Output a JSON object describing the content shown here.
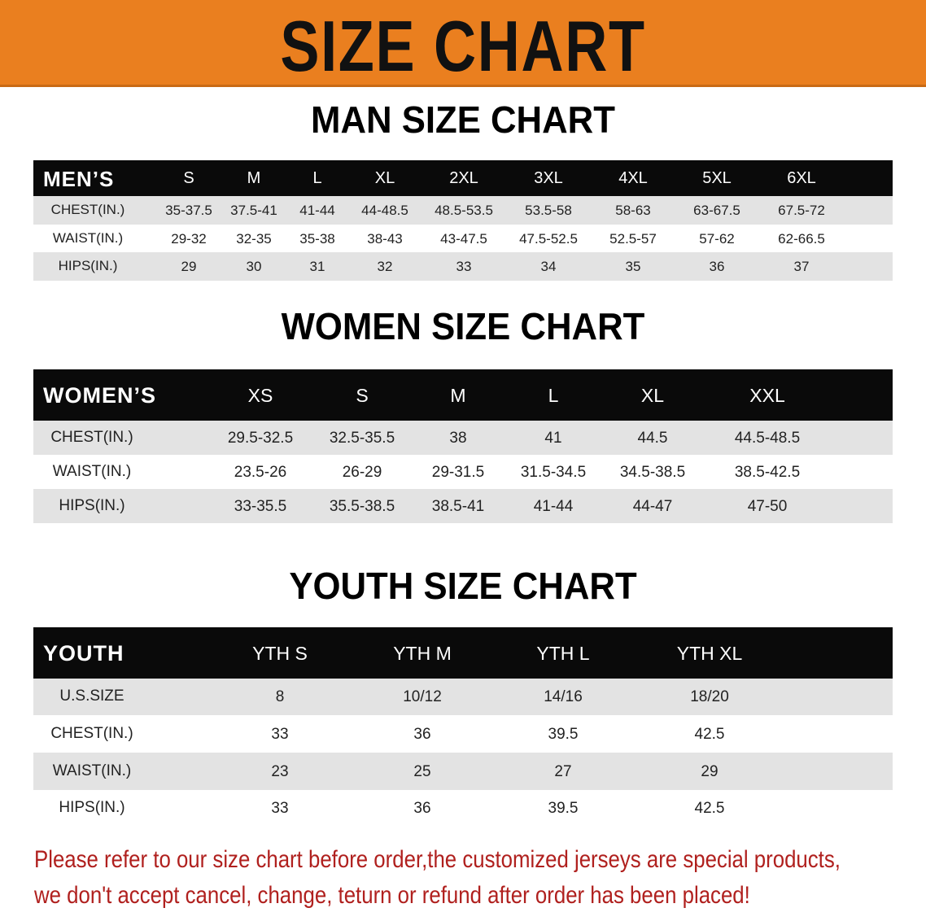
{
  "banner": {
    "title": "SIZE CHART",
    "color": "#ea7f1f"
  },
  "men": {
    "title": "MAN SIZE CHART",
    "header_label": "MEN’S",
    "sizes": [
      "S",
      "M",
      "L",
      "XL",
      "2XL",
      "3XL",
      "4XL",
      "5XL",
      "6XL"
    ],
    "rows": [
      {
        "label": "CHEST(IN.)",
        "values": [
          "35-37.5",
          "37.5-41",
          "41-44",
          "44-48.5",
          "48.5-53.5",
          "53.5-58",
          "58-63",
          "63-67.5",
          "67.5-72"
        ]
      },
      {
        "label": "WAIST(IN.)",
        "values": [
          "29-32",
          "32-35",
          "35-38",
          "38-43",
          "43-47.5",
          "47.5-52.5",
          "52.5-57",
          "57-62",
          "62-66.5"
        ]
      },
      {
        "label": "HIPS(IN.)",
        "values": [
          "29",
          "30",
          "31",
          "32",
          "33",
          "34",
          "35",
          "36",
          "37"
        ]
      }
    ]
  },
  "women": {
    "title": "WOMEN SIZE CHART",
    "header_label": "WOMEN’S",
    "sizes": [
      "XS",
      "S",
      "M",
      "L",
      "XL",
      "XXL"
    ],
    "rows": [
      {
        "label": "CHEST(IN.)",
        "values": [
          "29.5-32.5",
          "32.5-35.5",
          "38",
          "41",
          "44.5",
          "44.5-48.5"
        ]
      },
      {
        "label": "WAIST(IN.)",
        "values": [
          "23.5-26",
          "26-29",
          "29-31.5",
          "31.5-34.5",
          "34.5-38.5",
          "38.5-42.5"
        ]
      },
      {
        "label": "HIPS(IN.)",
        "values": [
          "33-35.5",
          "35.5-38.5",
          "38.5-41",
          "41-44",
          "44-47",
          "47-50"
        ]
      }
    ]
  },
  "youth": {
    "title": "YOUTH SIZE CHART",
    "header_label": "YOUTH",
    "sizes": [
      "YTH S",
      "YTH M",
      "YTH L",
      "YTH XL"
    ],
    "rows": [
      {
        "label": "U.S.SIZE",
        "values": [
          "8",
          "10/12",
          "14/16",
          "18/20"
        ]
      },
      {
        "label": "CHEST(IN.)",
        "values": [
          "33",
          "36",
          "39.5",
          "42.5"
        ]
      },
      {
        "label": "WAIST(IN.)",
        "values": [
          "23",
          "25",
          "27",
          "29"
        ]
      },
      {
        "label": "HIPS(IN.)",
        "values": [
          "33",
          "36",
          "39.5",
          "42.5"
        ]
      }
    ]
  },
  "footer": {
    "line1": "Please refer to our size chart before order,the customized jerseys are special products,",
    "line2": "we don't accept cancel, change, teturn or refund after order has been placed!",
    "color": "#b0201e"
  }
}
